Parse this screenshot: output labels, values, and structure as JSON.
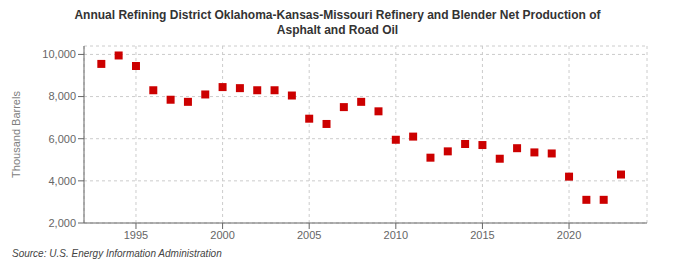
{
  "chart_data": {
    "type": "scatter",
    "title": "Annual Refining District Oklahoma-Kansas-Missouri Refinery and Blender Net Production of\nAsphalt and Road Oil",
    "ylabel": "Thousand Barrels",
    "source": "Source: U.S. Energy Information Administration",
    "color": "#cc0000",
    "marker": "square",
    "x": [
      1993,
      1994,
      1995,
      1996,
      1997,
      1998,
      1999,
      2000,
      2001,
      2002,
      2003,
      2004,
      2005,
      2006,
      2007,
      2008,
      2009,
      2010,
      2011,
      2012,
      2013,
      2014,
      2015,
      2016,
      2017,
      2018,
      2019,
      2020,
      2021,
      2022,
      2023
    ],
    "values": [
      9550,
      9950,
      9450,
      8300,
      7850,
      7750,
      8100,
      8450,
      8400,
      8300,
      8300,
      8050,
      6950,
      6700,
      7500,
      7750,
      7300,
      5950,
      6100,
      5100,
      5400,
      5750,
      5700,
      5050,
      5550,
      5350,
      5300,
      4200,
      3100,
      3100,
      4300
    ],
    "xlim": [
      1992,
      2024.5
    ],
    "xticks": [
      1995,
      2000,
      2005,
      2010,
      2015,
      2020
    ],
    "ylim": [
      2000,
      10400
    ],
    "yticks": [
      {
        "value": 2000,
        "label": "2,000"
      },
      {
        "value": 4000,
        "label": "4,000"
      },
      {
        "value": 6000,
        "label": "6,000"
      },
      {
        "value": 8000,
        "label": "8,000"
      },
      {
        "value": 10000,
        "label": "10,000"
      }
    ],
    "grid": true
  }
}
